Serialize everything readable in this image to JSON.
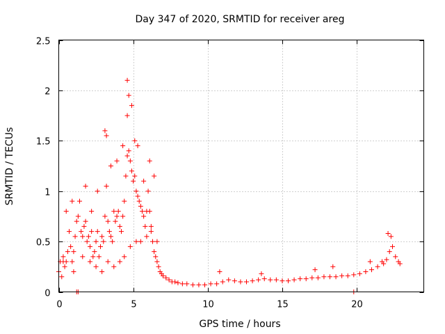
{
  "chart_data": {
    "type": "scatter",
    "title": "Day 347 of 2020, SRMTID for receiver areg",
    "xlabel": "GPS time / hours",
    "ylabel": "SRMTID / TECUs",
    "xlim": [
      0,
      24.5
    ],
    "ylim": [
      0,
      2.5
    ],
    "xticks": [
      0,
      5,
      10,
      15,
      20
    ],
    "xtick_labels": [
      "0",
      "5",
      "10",
      "15",
      "20"
    ],
    "yticks": [
      0,
      0.5,
      1,
      1.5,
      2,
      2.5
    ],
    "ytick_labels": [
      "0",
      "0.5",
      "1",
      "1.5",
      "2",
      "2.5"
    ],
    "grid": true,
    "marker": "+",
    "series": [
      {
        "name": "SRMTID",
        "color": "#ff0000",
        "x": [
          0.0,
          0.1,
          0.2,
          0.3,
          0.4,
          0.5,
          0.6,
          0.7,
          0.8,
          0.9,
          1.0,
          1.1,
          1.2,
          1.3,
          1.4,
          1.5,
          1.6,
          1.7,
          1.8,
          1.9,
          2.0,
          2.1,
          2.2,
          2.3,
          2.4,
          2.5,
          2.6,
          2.7,
          2.8,
          2.9,
          3.0,
          3.1,
          3.2,
          3.3,
          3.4,
          3.5,
          3.6,
          3.7,
          3.8,
          3.9,
          4.0,
          4.1,
          4.2,
          4.3,
          4.4,
          4.5,
          4.6,
          4.7,
          4.8,
          4.9,
          5.0,
          5.1,
          5.2,
          5.3,
          5.4,
          5.5,
          5.6,
          5.7,
          5.8,
          5.9,
          6.0,
          6.1,
          6.2,
          6.3,
          6.4,
          6.5,
          6.6,
          6.7,
          6.8,
          6.9,
          7.0,
          7.2,
          7.4,
          7.6,
          7.8,
          8.0,
          8.3,
          8.6,
          9.0,
          9.4,
          9.8,
          10.2,
          10.6,
          11.0,
          11.4,
          11.8,
          12.2,
          12.6,
          13.0,
          13.4,
          13.8,
          14.2,
          14.6,
          15.0,
          15.4,
          15.8,
          16.2,
          16.6,
          17.0,
          17.4,
          17.8,
          18.2,
          18.6,
          19.0,
          19.4,
          19.8,
          20.2,
          20.6,
          21.0,
          21.4,
          21.8,
          22.0,
          22.2,
          22.4,
          22.6,
          22.8,
          22.9,
          1.2,
          1.3,
          19.8,
          0.3,
          0.9,
          1.8,
          2.2,
          2.6,
          3.1,
          3.2,
          3.5,
          3.9,
          4.3,
          4.6,
          4.6,
          4.7,
          4.9,
          5.1,
          5.3,
          5.7,
          6.1,
          6.4,
          0.5,
          1.0,
          1.6,
          2.1,
          2.5,
          2.9,
          3.3,
          3.7,
          4.1,
          4.4,
          4.8,
          5.2,
          5.5,
          5.9,
          6.2,
          6.6,
          10.8,
          13.6,
          17.2,
          18.4,
          20.9,
          21.7,
          22.1,
          22.3
        ],
        "y": [
          0.2,
          0.3,
          0.15,
          0.35,
          0.25,
          0.3,
          0.4,
          0.6,
          0.45,
          0.3,
          0.2,
          0.55,
          0.7,
          0.75,
          0.9,
          0.6,
          0.55,
          0.65,
          0.7,
          0.5,
          0.55,
          0.45,
          0.6,
          0.35,
          0.4,
          0.5,
          0.6,
          0.35,
          0.45,
          0.55,
          0.5,
          0.75,
          1.05,
          0.7,
          0.6,
          0.55,
          0.5,
          0.8,
          0.7,
          0.75,
          0.8,
          0.65,
          0.6,
          0.75,
          0.9,
          1.15,
          1.35,
          1.4,
          1.3,
          1.2,
          1.1,
          1.15,
          1.0,
          0.95,
          0.9,
          0.85,
          0.8,
          0.75,
          0.65,
          0.8,
          1.0,
          0.8,
          0.65,
          0.5,
          0.4,
          0.35,
          0.3,
          0.25,
          0.2,
          0.18,
          0.16,
          0.14,
          0.12,
          0.1,
          0.1,
          0.09,
          0.08,
          0.08,
          0.07,
          0.07,
          0.07,
          0.08,
          0.08,
          0.1,
          0.12,
          0.11,
          0.1,
          0.1,
          0.11,
          0.12,
          0.13,
          0.12,
          0.12,
          0.11,
          0.11,
          0.12,
          0.13,
          0.13,
          0.14,
          0.14,
          0.15,
          0.15,
          0.15,
          0.16,
          0.16,
          0.17,
          0.18,
          0.2,
          0.22,
          0.25,
          0.28,
          0.32,
          0.4,
          0.45,
          0.35,
          0.3,
          0.28,
          0.0,
          0.0,
          0.0,
          0.3,
          0.9,
          1.05,
          0.8,
          1.0,
          1.6,
          1.55,
          1.25,
          1.3,
          1.45,
          1.75,
          2.1,
          1.95,
          1.85,
          1.5,
          1.45,
          1.1,
          1.3,
          1.15,
          0.8,
          0.4,
          0.35,
          0.3,
          0.25,
          0.2,
          0.3,
          0.25,
          0.3,
          0.35,
          0.45,
          0.5,
          0.5,
          0.55,
          0.6,
          0.5,
          0.2,
          0.18,
          0.22,
          0.25,
          0.3,
          0.3,
          0.58,
          0.55
        ]
      }
    ]
  }
}
